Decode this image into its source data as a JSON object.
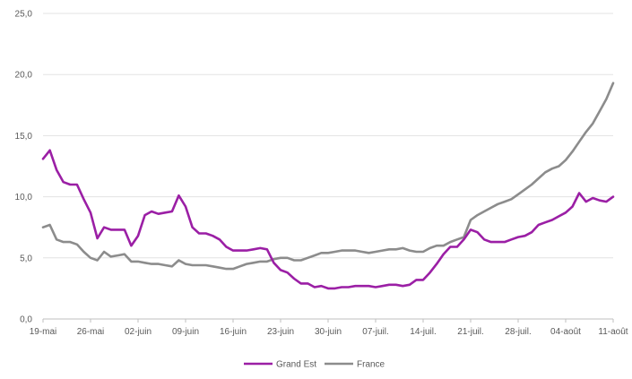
{
  "chart_data": {
    "type": "line",
    "title": "",
    "xlabel": "",
    "ylabel": "",
    "ylim": [
      0,
      25
    ],
    "y_ticks": [
      "0,0",
      "5,0",
      "10,0",
      "15,0",
      "20,0",
      "25,0"
    ],
    "y_tick_values": [
      0,
      5,
      10,
      15,
      20,
      25
    ],
    "x_ticks": [
      "19-mai",
      "26-mai",
      "02-juin",
      "09-juin",
      "16-juin",
      "23-juin",
      "30-juin",
      "07-juil.",
      "14-juil.",
      "21-juil.",
      "28-juil.",
      "04-août",
      "11-août"
    ],
    "x_tick_days": [
      0,
      7,
      14,
      21,
      28,
      35,
      42,
      49,
      56,
      63,
      70,
      77,
      84
    ],
    "x_count": 85,
    "grid": "horizontal",
    "legend_position": "bottom",
    "series": [
      {
        "name": "Grand Est",
        "color": "#9b1fa5",
        "values": [
          13.1,
          13.8,
          12.2,
          11.2,
          11.0,
          11.0,
          9.8,
          8.7,
          6.6,
          7.5,
          7.3,
          7.3,
          7.3,
          6.0,
          6.8,
          8.5,
          8.8,
          8.6,
          8.7,
          8.8,
          10.1,
          9.2,
          7.5,
          7.0,
          7.0,
          6.8,
          6.5,
          5.9,
          5.6,
          5.6,
          5.6,
          5.7,
          5.8,
          5.7,
          4.6,
          4.0,
          3.8,
          3.3,
          2.9,
          2.9,
          2.6,
          2.7,
          2.5,
          2.5,
          2.6,
          2.6,
          2.7,
          2.7,
          2.7,
          2.6,
          2.7,
          2.8,
          2.8,
          2.7,
          2.8,
          3.2,
          3.2,
          3.8,
          4.5,
          5.3,
          5.9,
          5.9,
          6.5,
          7.3,
          7.1,
          6.5,
          6.3,
          6.3,
          6.3,
          6.5,
          6.7,
          6.8,
          7.1,
          7.7,
          7.9,
          8.1,
          8.4,
          8.7,
          9.2,
          10.3,
          9.6,
          9.9,
          9.7,
          9.6,
          10.0
        ]
      },
      {
        "name": "France",
        "color": "#8c8c8c",
        "values": [
          7.5,
          7.7,
          6.5,
          6.3,
          6.3,
          6.1,
          5.5,
          5.0,
          4.8,
          5.5,
          5.1,
          5.2,
          5.3,
          4.7,
          4.7,
          4.6,
          4.5,
          4.5,
          4.4,
          4.3,
          4.8,
          4.5,
          4.4,
          4.4,
          4.4,
          4.3,
          4.2,
          4.1,
          4.1,
          4.3,
          4.5,
          4.6,
          4.7,
          4.7,
          4.9,
          5.0,
          5.0,
          4.8,
          4.8,
          5.0,
          5.2,
          5.4,
          5.4,
          5.5,
          5.6,
          5.6,
          5.6,
          5.5,
          5.4,
          5.5,
          5.6,
          5.7,
          5.7,
          5.8,
          5.6,
          5.5,
          5.5,
          5.8,
          6.0,
          6.0,
          6.3,
          6.5,
          6.7,
          8.1,
          8.5,
          8.8,
          9.1,
          9.4,
          9.6,
          9.8,
          10.2,
          10.6,
          11.0,
          11.5,
          12.0,
          12.3,
          12.5,
          13.0,
          13.7,
          14.5,
          15.3,
          16.0,
          17.0,
          18.0,
          19.3
        ]
      }
    ]
  }
}
